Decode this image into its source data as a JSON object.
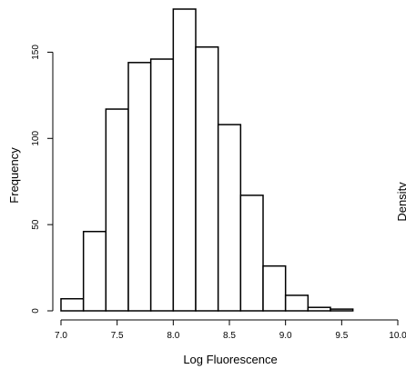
{
  "chart_data": {
    "type": "bar",
    "xlabel": "Log Fluorescence",
    "ylabel": "Frequency",
    "right_panel_label": "Density",
    "xlim": [
      7.0,
      10.0
    ],
    "ylim": [
      0,
      175
    ],
    "bin_width": 0.2,
    "bins_left_edges": [
      7.0,
      7.2,
      7.4,
      7.6,
      7.8,
      8.0,
      8.2,
      8.4,
      8.6,
      8.8,
      9.0,
      9.2,
      9.4
    ],
    "values": [
      7,
      46,
      117,
      144,
      146,
      175,
      153,
      108,
      67,
      26,
      9,
      2,
      1
    ],
    "xticks": [
      "7.0",
      "7.5",
      "8.0",
      "8.5",
      "9.0",
      "9.5",
      "10.0"
    ],
    "xtick_values": [
      7.0,
      7.5,
      8.0,
      8.5,
      9.0,
      9.5,
      10.0
    ],
    "yticks": [
      "0",
      "50",
      "100",
      "150"
    ],
    "ytick_values": [
      0,
      50,
      100,
      150
    ],
    "grid": false,
    "legend": "none",
    "bar_fill": "#ffffff",
    "bar_stroke": "#000000"
  }
}
